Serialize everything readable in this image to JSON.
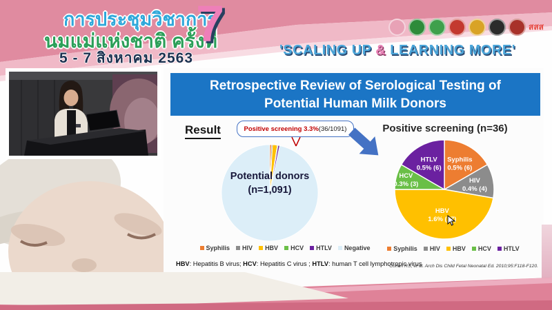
{
  "banner": {
    "conference_title_line1": "การประชุมวิชาการ",
    "conference_title_line2": "นมแม่แห่งชาติ ครั้งที่",
    "date": "5 - 7 สิงหาคม 2563",
    "edition_number": "7",
    "tagline_part1": "'SCALING UP ",
    "tagline_amp": "&",
    "tagline_part2": " LEARNING MORE'",
    "logos": [
      {
        "name": "mother-baby-foundation-logo",
        "color": "#E8A2B6"
      },
      {
        "name": "green-health-department-logo",
        "color": "#2E8B3A"
      },
      {
        "name": "green-medical-logo",
        "color": "#3FA04C"
      },
      {
        "name": "royal-temple-emblem-logo",
        "color": "#C3392F"
      },
      {
        "name": "gold-crown-emblem-logo",
        "color": "#D9A326"
      },
      {
        "name": "black-university-emblem-logo",
        "color": "#2B2B2B"
      },
      {
        "name": "red-round-emblem-logo",
        "color": "#A8322A"
      },
      {
        "name": "thai-health-sss-logo",
        "color": "#E6453C",
        "text": "สสส"
      }
    ]
  },
  "slide": {
    "title_line1": "Retrospective Review of Serological Testing of",
    "title_line2": "Potential Human Milk Donors",
    "result_label": "Result",
    "callout_highlight": "Positive screening 3.3%",
    "callout_detail": " (36/1091)",
    "footnote_terms": [
      {
        "term": "HBV",
        "desc": ": Hepatitis B virus; "
      },
      {
        "term": "HCV",
        "desc": ": Hepatitis C virus ; "
      },
      {
        "term": "HTLV",
        "desc": ": human T cell lymphotropic virus"
      }
    ],
    "citation": "Cohen RS, et al. Arch Dis Child Fetal Neonatal Ed. 2010;95:F118-F120."
  },
  "chart_data": [
    {
      "type": "pie",
      "title": "Potential donors (n=1,091)",
      "center_label_line1": "Potential donors",
      "center_label_line2": "(n=1,091)",
      "categories": [
        "Syphilis",
        "HIV",
        "HBV",
        "HCV",
        "HTLV",
        "Negative"
      ],
      "values": [
        6,
        4,
        17,
        3,
        6,
        1055
      ],
      "colors": [
        "#ED7D31",
        "#8C8C8C",
        "#FFC000",
        "#6ABF47",
        "#6B21A0",
        "#DCEEF8"
      ],
      "slice_labels": [
        "",
        "",
        "",
        "",
        "",
        ""
      ],
      "legend_position": "bottom",
      "start_angle_deg": 0,
      "stroke_width": 0.8
    },
    {
      "type": "pie",
      "title": "Positive screening (n=36)",
      "categories": [
        "Syphilis",
        "HIV",
        "HBV",
        "HCV",
        "HTLV"
      ],
      "values": [
        6,
        4,
        17,
        3,
        6
      ],
      "slice_labels": [
        "0.5% (6)",
        "0.4% (4)",
        "1.6% (17)",
        "0.3% (3)",
        "0.5% (6)"
      ],
      "colors": [
        "#ED7D31",
        "#8C8C8C",
        "#FFC000",
        "#6ABF47",
        "#6B21A0"
      ],
      "legend_position": "bottom",
      "start_angle_deg": 0,
      "stroke_width": 1.4
    }
  ],
  "colors": {
    "title_bar_blue": "#1B75C5",
    "arrow_blue": "#4472C4",
    "callout_red": "#C00000",
    "banner_pink": "#E08BA0",
    "tagline_blue": "#4BA6DA",
    "tagline_pink": "#E87FB5"
  }
}
